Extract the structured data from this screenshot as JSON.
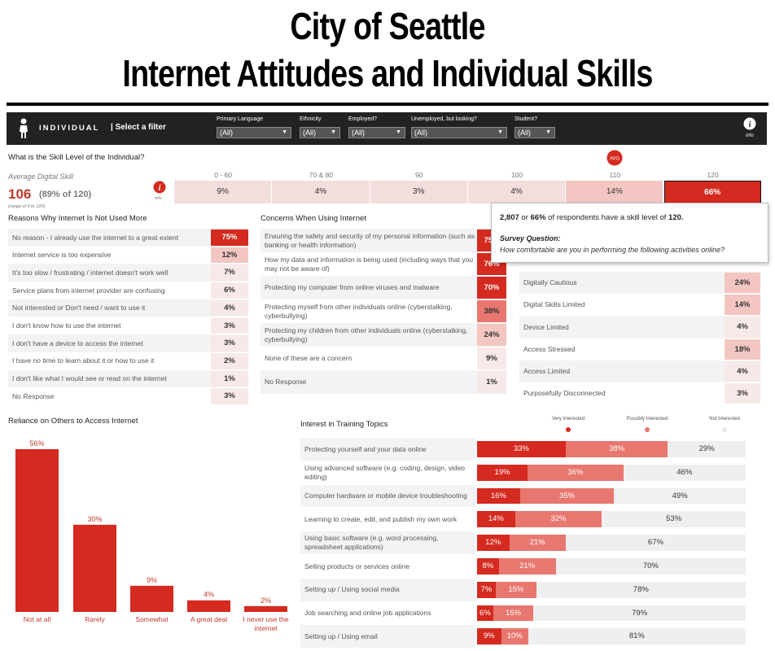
{
  "title_line1": "City of Seattle",
  "title_line2": "Internet Attitudes and Individual Skills",
  "header": {
    "section": "INDIVIDUAL",
    "select_filter": "Select a filter",
    "info_label": "info",
    "filters": [
      {
        "label": "Primary Language",
        "value": "(All)"
      },
      {
        "label": "Ethnicity",
        "value": "(All)"
      },
      {
        "label": "Employed?",
        "value": "(All)"
      },
      {
        "label": "Unemployed, but looking?",
        "value": "(All)"
      },
      {
        "label": "Student?",
        "value": "(All)"
      }
    ]
  },
  "skill": {
    "question": "What is the Skill Level of the Individual?",
    "avg_label": "Average Digital Skill",
    "avg_value": "106",
    "avg_pct": "(89% of 120)",
    "range_note": "(range of 0 to 120)",
    "info_label": "info",
    "avg_badge": "AVG",
    "levels": [
      "0 - 60",
      "70 & 80",
      "90",
      "100",
      "110",
      "120"
    ],
    "percents": [
      9,
      4,
      3,
      4,
      14,
      66
    ],
    "percent_labels": [
      "9%",
      "4%",
      "3%",
      "4%",
      "14%",
      "66%"
    ]
  },
  "tooltip": {
    "line_count": "2,807",
    "line_or": "or",
    "line_pct": "66%",
    "line_mid": "of respondents have a skill level of",
    "line_level": "120.",
    "question_label": "Survey Question:",
    "question_text": "How comfortable are you in performing the following activities online?"
  },
  "reasons": {
    "title": "Reasons Why Internet Is Not Used More",
    "items": [
      {
        "label": "No reason - I already use the internet to a great extent",
        "value": 75,
        "text": "75%"
      },
      {
        "label": "Internet service is too expensive",
        "value": 12,
        "text": "12%"
      },
      {
        "label": "It's too slow / frustrating / internet doesn't work well",
        "value": 7,
        "text": "7%"
      },
      {
        "label": "Service plans from internet provider are confusing",
        "value": 6,
        "text": "6%"
      },
      {
        "label": "Not interested or Don't need / want to use it",
        "value": 4,
        "text": "4%"
      },
      {
        "label": "I don't know how to use the internet",
        "value": 3,
        "text": "3%"
      },
      {
        "label": "I don't have a device to access the internet",
        "value": 3,
        "text": "3%"
      },
      {
        "label": "I have no time to learn about it or how to use it",
        "value": 2,
        "text": "2%"
      },
      {
        "label": "I don't like what I would see or read on the internet",
        "value": 1,
        "text": "1%"
      },
      {
        "label": "No Response",
        "value": 3,
        "text": "3%"
      }
    ]
  },
  "concerns": {
    "title": "Concerns When Using Internet",
    "items": [
      {
        "label": "Ensuring the safety and security of my personal information (such as banking or health information)",
        "value": 75,
        "text": "75%"
      },
      {
        "label": "How my data and information is being used (including ways that you may not be aware of)",
        "value": 76,
        "text": "76%"
      },
      {
        "label": "Protecting my computer from online viruses and malware",
        "value": 70,
        "text": "70%"
      },
      {
        "label": "Protecting myself from other individuals online (cyberstalking, cyberbullying)",
        "value": 38,
        "text": "38%"
      },
      {
        "label": "Protecting my children from other individuals online (cyberstalking, cyberbullying)",
        "value": 24,
        "text": "24%"
      },
      {
        "label": "None of these are a concern",
        "value": 9,
        "text": "9%"
      },
      {
        "label": "No Response",
        "value": 1,
        "text": "1%"
      }
    ]
  },
  "digital_types": {
    "items": [
      {
        "label": "Digitally Cautious",
        "value": 24,
        "text": "24%"
      },
      {
        "label": "Digital Skills Limited",
        "value": 14,
        "text": "14%"
      },
      {
        "label": "Device Limited",
        "value": 4,
        "text": "4%"
      },
      {
        "label": "Access Stressed",
        "value": 18,
        "text": "18%"
      },
      {
        "label": "Access Limited",
        "value": 4,
        "text": "4%"
      },
      {
        "label": "Purposefully Disconnected",
        "value": 3,
        "text": "3%"
      }
    ]
  },
  "reliance": {
    "title": "Reliance on Others to Access Internet",
    "categories": [
      "Not at all",
      "Rarely",
      "Somewhat",
      "A great deal",
      "I never use the internet"
    ],
    "values": [
      56,
      30,
      9,
      4,
      2
    ],
    "labels": [
      "56%",
      "30%",
      "9%",
      "4%",
      "2%"
    ]
  },
  "training": {
    "title": "Interest in Training Topics",
    "legend": [
      "Very Interested",
      "Possibly Interested",
      "Not Interested"
    ],
    "items": [
      {
        "label": "Protecting yourself and your data online",
        "v": [
          33,
          38,
          29
        ]
      },
      {
        "label": "Using advanced software (e.g. coding, design, video editing)",
        "v": [
          19,
          36,
          46
        ]
      },
      {
        "label": "Computer hardware or mobile device troubleshooting",
        "v": [
          16,
          35,
          49
        ]
      },
      {
        "label": "Learning to create, edit, and publish my own work",
        "v": [
          14,
          32,
          53
        ]
      },
      {
        "label": "Using basic software (e.g. word processing, spreadsheet applications)",
        "v": [
          12,
          21,
          67
        ]
      },
      {
        "label": "Selling products or services online",
        "v": [
          8,
          21,
          70
        ]
      },
      {
        "label": "Setting up / Using social media",
        "v": [
          7,
          15,
          78
        ]
      },
      {
        "label": "Job searching and online job applications",
        "v": [
          6,
          15,
          79
        ]
      },
      {
        "label": "Setting up / Using email",
        "v": [
          9,
          10,
          81
        ]
      }
    ]
  },
  "chart_data": [
    {
      "type": "bar",
      "title": "What is the Skill Level of the Individual?",
      "categories": [
        "0 - 60",
        "70 & 80",
        "90",
        "100",
        "110",
        "120"
      ],
      "values": [
        9,
        4,
        3,
        4,
        14,
        66
      ]
    },
    {
      "type": "bar",
      "title": "Reasons Why Internet Is Not Used More",
      "categories": [
        "No reason - I already use the internet to a great extent",
        "Internet service is too expensive",
        "It's too slow / frustrating / internet doesn't work well",
        "Service plans from internet provider are confusing",
        "Not interested or Don't need / want to use it",
        "I don't know how to use the internet",
        "I don't have a device to access the internet",
        "I have no time to learn about it or how to use it",
        "I don't like what I would see or read on the internet",
        "No Response"
      ],
      "values": [
        75,
        12,
        7,
        6,
        4,
        3,
        3,
        2,
        1,
        3
      ]
    },
    {
      "type": "bar",
      "title": "Concerns When Using Internet",
      "categories": [
        "Ensuring the safety and security of my personal information (such as banking or health information)",
        "How my data and information is being used (including ways that you may not be aware of)",
        "Protecting my computer from online viruses and malware",
        "Protecting myself from other individuals online (cyberstalking, cyberbullying)",
        "Protecting my children from other individuals online (cyberstalking, cyberbullying)",
        "None of these are a concern",
        "No Response"
      ],
      "values": [
        75,
        76,
        70,
        38,
        24,
        9,
        1
      ]
    },
    {
      "type": "bar",
      "categories": [
        "Digitally Cautious",
        "Digital Skills Limited",
        "Device Limited",
        "Access Stressed",
        "Access Limited",
        "Purposefully Disconnected"
      ],
      "values": [
        24,
        14,
        4,
        18,
        4,
        3
      ]
    },
    {
      "type": "bar",
      "title": "Reliance on Others to Access Internet",
      "categories": [
        "Not at all",
        "Rarely",
        "Somewhat",
        "A great deal",
        "I never use the internet"
      ],
      "values": [
        56,
        30,
        9,
        4,
        2
      ]
    },
    {
      "type": "bar",
      "title": "Interest in Training Topics",
      "categories": [
        "Protecting yourself and your data online",
        "Using advanced software (e.g. coding, design, video editing)",
        "Computer hardware or mobile device troubleshooting",
        "Learning to create, edit, and publish my own work",
        "Using basic software (e.g. word processing, spreadsheet applications)",
        "Selling products or services online",
        "Setting up / Using social media",
        "Job searching and online job applications",
        "Setting up / Using email"
      ],
      "series": [
        {
          "name": "Very Interested",
          "values": [
            33,
            19,
            16,
            14,
            12,
            8,
            7,
            6,
            9
          ]
        },
        {
          "name": "Possibly Interested",
          "values": [
            38,
            36,
            35,
            32,
            21,
            21,
            15,
            15,
            10
          ]
        },
        {
          "name": "Not Interested",
          "values": [
            29,
            46,
            49,
            53,
            67,
            70,
            78,
            79,
            81
          ]
        }
      ]
    }
  ],
  "colors": {
    "dark_red": "#d42a1f",
    "mid_red": "#e8776f",
    "light_red": "#f3c6c2",
    "pale": "#f7e9e8",
    "header_bg": "#222222"
  }
}
